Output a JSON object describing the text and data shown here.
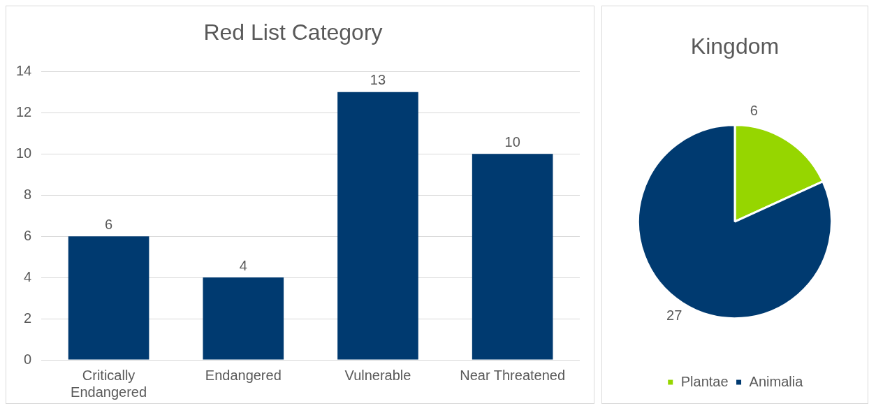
{
  "chart_data": [
    {
      "type": "bar",
      "title": "Red List Category",
      "categories": [
        "Critically Endangered",
        "Endangered",
        "Vulnerable",
        "Near Threatened"
      ],
      "values": [
        6,
        4,
        13,
        10
      ],
      "color": "#003a70",
      "ylim": [
        0,
        14
      ],
      "yticks": [
        0,
        2,
        4,
        6,
        8,
        10,
        12,
        14
      ],
      "grid": "y",
      "data_labels": true,
      "legend": false
    },
    {
      "type": "pie",
      "title": "Kingdom",
      "categories": [
        "Plantae",
        "Animalia"
      ],
      "values": [
        6,
        27
      ],
      "colors": [
        "#96d600",
        "#003a70"
      ],
      "data_labels": true,
      "legend": "bottom"
    }
  ]
}
